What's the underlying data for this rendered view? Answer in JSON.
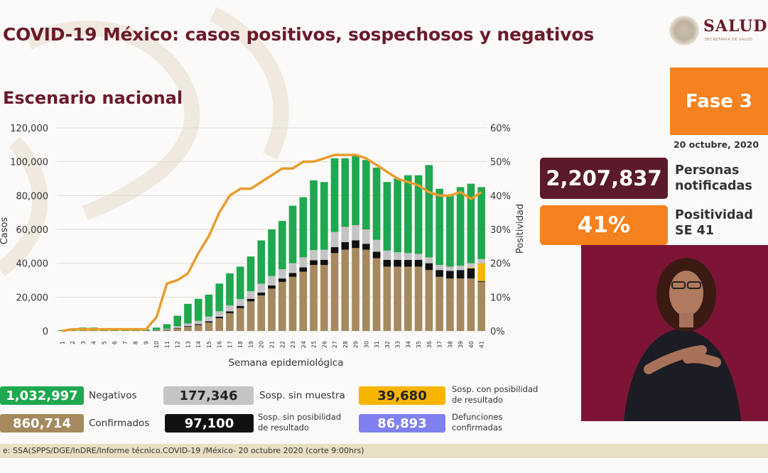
{
  "header": {
    "title": "COVID-19 México: casos positivos, sospechosos y negativos",
    "subtitle": "Escenario nacional",
    "logo_text": "SALUD",
    "logo_subtext": "SECRETARÍA DE SALUD"
  },
  "sidebar": {
    "fase": "Fase 3",
    "date": "20 octubre, 2020",
    "notificadas_value": "2,207,837",
    "notificadas_label_1": "Personas",
    "notificadas_label_2": "notificadas",
    "positividad_value": "41%",
    "positividad_label_1": "Positividad",
    "positividad_label_2": "SE 41"
  },
  "legend": {
    "negativos_value": "1,032,997",
    "negativos_label": "Negativos",
    "confirmados_value": "860,714",
    "confirmados_label": "Confirmados",
    "sosp_sin_muestra_value": "177,346",
    "sosp_sin_muestra_label": "Sosp. sin muestra",
    "sosp_sin_pos_value": "97,100",
    "sosp_sin_pos_label_1": "Sosp. sin posibilidad",
    "sosp_sin_pos_label_2": "de resultado",
    "sosp_con_pos_value": "39,680",
    "sosp_con_pos_label_1": "Sosp. con posibilidad",
    "sosp_con_pos_label_2": "de resultado",
    "defunciones_value": "86,893",
    "defunciones_label_1": "Defunciones",
    "defunciones_label_2": "confirmadas"
  },
  "footer": {
    "source": "e: SSA(SPPS/DGE/InDRE/Informe técnico.COVID-19 /México- 20 octubre 2020 (corte 9:00hrs)"
  },
  "colors": {
    "negativos": "#1fa84f",
    "confirmados": "#a6895e",
    "sosp_sin_muestra": "#c4c4c4",
    "sosp_sin_pos": "#111111",
    "sosp_con_pos": "#f7b500",
    "defunciones": "#7f7ff0",
    "positividad_line": "#eb9b2d",
    "title": "#6b1a2b"
  },
  "chart_data": {
    "type": "bar",
    "stacked": true,
    "xlabel": "Semana epidemiológica",
    "ylabel": "Casos",
    "y2label": "Positividad",
    "ylim": [
      0,
      120000
    ],
    "y2lim": [
      0,
      60
    ],
    "yticks": [
      "0",
      "20,000",
      "40,000",
      "60,000",
      "80,000",
      "100,000",
      "120,000"
    ],
    "y2ticks": [
      "0%",
      "10%",
      "20%",
      "30%",
      "40%",
      "50%",
      "60%"
    ],
    "categories": [
      "1",
      "2",
      "3",
      "4",
      "5",
      "6",
      "7",
      "8",
      "9",
      "10",
      "11",
      "12",
      "13",
      "14",
      "15",
      "16",
      "17",
      "18",
      "19",
      "20",
      "21",
      "22",
      "23",
      "24",
      "25",
      "26",
      "27",
      "28",
      "29",
      "30",
      "31",
      "32",
      "33",
      "34",
      "35",
      "36",
      "37",
      "38",
      "39",
      "40",
      "41"
    ],
    "series": [
      {
        "name": "Confirmados",
        "values": [
          0,
          0,
          0,
          0,
          0,
          0,
          0,
          0,
          0,
          200,
          600,
          1500,
          2500,
          3500,
          5000,
          7500,
          10500,
          13500,
          17500,
          21000,
          25000,
          29000,
          32000,
          35000,
          39000,
          39000,
          46000,
          48000,
          49000,
          48000,
          43000,
          38000,
          38000,
          38000,
          38000,
          36000,
          32000,
          31000,
          31000,
          31000,
          29000
        ]
      },
      {
        "name": "Sosp. sin posibilidad de resultado",
        "values": [
          0,
          0,
          0,
          0,
          0,
          0,
          0,
          0,
          0,
          100,
          200,
          300,
          400,
          500,
          700,
          900,
          1100,
          1300,
          1500,
          1700,
          1900,
          2000,
          2200,
          2600,
          2800,
          3000,
          3500,
          4500,
          4500,
          3500,
          3800,
          4000,
          4000,
          4000,
          4000,
          4000,
          4000,
          4500,
          5000,
          6000,
          500
        ]
      },
      {
        "name": "Sosp. con posibilidad de resultado",
        "values": [
          0,
          0,
          0,
          0,
          0,
          0,
          0,
          0,
          0,
          0,
          0,
          0,
          0,
          0,
          0,
          0,
          0,
          0,
          0,
          0,
          0,
          0,
          0,
          0,
          0,
          0,
          0,
          0,
          0,
          0,
          0,
          0,
          0,
          0,
          0,
          0,
          0,
          0,
          0,
          500,
          10500
        ]
      },
      {
        "name": "Sosp. sin muestra",
        "values": [
          0,
          0,
          0,
          0,
          0,
          0,
          0,
          0,
          0,
          300,
          500,
          1000,
          1500,
          2000,
          2800,
          3200,
          3500,
          4000,
          4500,
          5200,
          5500,
          5500,
          5800,
          5900,
          6000,
          6000,
          9000,
          9000,
          9000,
          8500,
          7000,
          5500,
          4500,
          4000,
          3500,
          3500,
          3000,
          2500,
          2500,
          2500,
          2500
        ]
      },
      {
        "name": "Negativos",
        "values": [
          500,
          1500,
          2000,
          2000,
          1500,
          1500,
          1500,
          1500,
          1000,
          1400,
          2700,
          6200,
          11600,
          13000,
          13000,
          16400,
          18900,
          19200,
          20500,
          25600,
          27600,
          28500,
          34000,
          35500,
          41200,
          40000,
          43500,
          40500,
          41500,
          41000,
          42700,
          40500,
          43500,
          46000,
          46500,
          54500,
          45000,
          42000,
          46500,
          47000,
          42500
        ]
      },
      {
        "name": "Positividad",
        "axis": "y2",
        "values": [
          0,
          0.5,
          0.5,
          0.5,
          0.5,
          0.5,
          0.5,
          0.5,
          0.5,
          4,
          14,
          15,
          17,
          23,
          28,
          35,
          40,
          42,
          42,
          44,
          46,
          48,
          48,
          50,
          50,
          51,
          52,
          52,
          52,
          51,
          49,
          47,
          45,
          44,
          43,
          41,
          40,
          40,
          41,
          39,
          41
        ]
      }
    ],
    "grid": true,
    "legend_position": "bottom"
  }
}
